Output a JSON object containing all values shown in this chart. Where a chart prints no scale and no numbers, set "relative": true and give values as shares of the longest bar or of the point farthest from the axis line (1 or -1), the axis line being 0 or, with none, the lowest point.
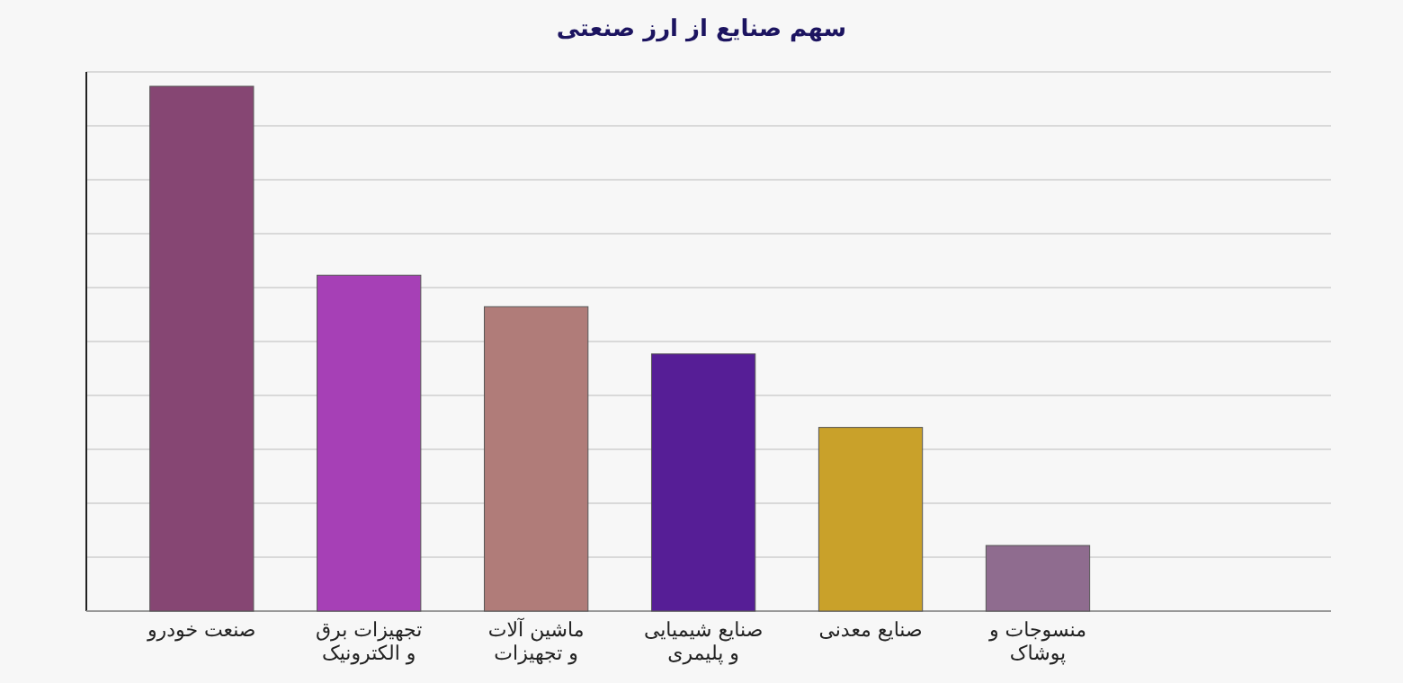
{
  "chart_data": {
    "type": "bar",
    "title": "سهم صنایع از ارز صنعتی",
    "categories": [
      "صنعت خودرو",
      "تجهیزات برق و الکترونیک",
      "ماشین آلات و تجهیزات",
      "صنایع شیمیایی و پلیمری",
      "صنایع معدنی",
      "منسوجات و پوشاک"
    ],
    "values": [
      1,
      0.64,
      0.58,
      0.49,
      0.35,
      0.125
    ],
    "colors": [
      "#864673",
      "#a640b6",
      "#b07c79",
      "#561e96",
      "#c9a12a",
      "#8f6c8f"
    ],
    "relative": true,
    "grid": true
  }
}
